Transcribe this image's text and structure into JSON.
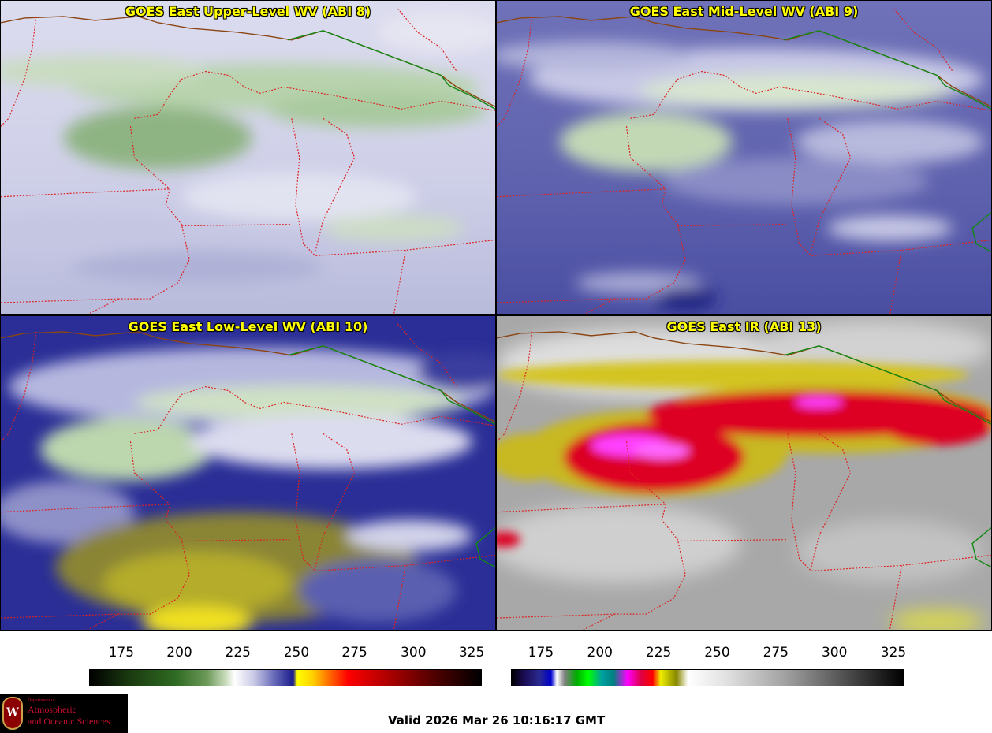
{
  "panels": [
    {
      "title": "GOES East Upper-Level WV (ABI 8)"
    },
    {
      "title": "GOES East Mid-Level WV (ABI 9)"
    },
    {
      "title": "GOES East Low-Level WV (ABI 10)"
    },
    {
      "title": "GOES East IR (ABI 13)"
    }
  ],
  "colorbars": [
    {
      "name": "wv-colorbar",
      "ticks": [
        "175",
        "200",
        "225",
        "250",
        "275",
        "300",
        "325"
      ],
      "min": 163,
      "max": 330
    },
    {
      "name": "ir-colorbar",
      "ticks": [
        "175",
        "200",
        "225",
        "250",
        "275",
        "300",
        "325"
      ],
      "min": 163,
      "max": 330
    }
  ],
  "valid_time": "Valid 2026 Mar 26 10:16:17 GMT",
  "logo": {
    "department": "Department of",
    "line1": "Atmospheric",
    "line2": "and Oceanic Sciences",
    "seal": "W"
  },
  "colors": {
    "border_red": "#dd2222",
    "border_green": "#118811",
    "border_brown": "#8b4513",
    "title_yellow": "#ffff00"
  }
}
